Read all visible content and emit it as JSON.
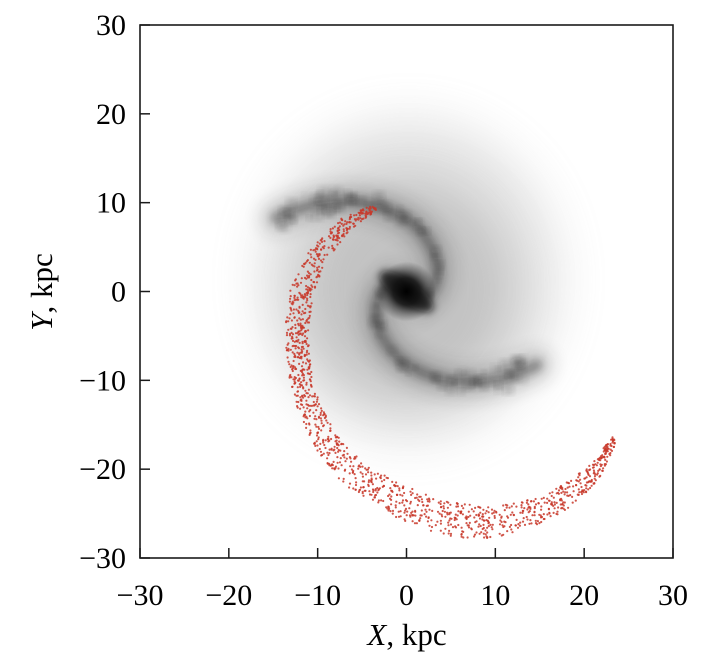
{
  "chart_data": {
    "type": "scatter",
    "xlabel_var": "X",
    "xlabel_unit": ", kpc",
    "ylabel_var": "Y",
    "ylabel_unit": ", kpc",
    "xlim": [
      -30,
      30
    ],
    "ylim": [
      -30,
      30
    ],
    "x_ticks": [
      -30,
      -20,
      -10,
      0,
      10,
      20,
      30
    ],
    "y_ticks": [
      -30,
      -20,
      -10,
      0,
      10,
      20,
      30
    ],
    "x_tick_labels": [
      "−30",
      "−20",
      "−10",
      "0",
      "10",
      "20",
      "30"
    ],
    "y_tick_labels": [
      "−30",
      "−20",
      "−10",
      "0",
      "10",
      "20",
      "30"
    ],
    "grid": false,
    "colors": {
      "stream": "#c8382a",
      "galaxy": "#222222"
    },
    "background_image": "grayscale two-armed spiral galaxy centered near (0, 0), radius about 20 kpc",
    "stream_track": {
      "x": [
        -3.5,
        -7,
        -10,
        -11.8,
        -12.4,
        -12,
        -11,
        -9,
        -6,
        -2,
        2,
        6,
        10,
        14,
        18,
        21,
        23.5
      ],
      "y": [
        9.5,
        7.5,
        4,
        0,
        -4.5,
        -9,
        -13,
        -17,
        -20.5,
        -23,
        -24.8,
        -25.8,
        -26,
        -25,
        -23,
        -20.5,
        -16.5
      ],
      "half_width": [
        0.4,
        0.8,
        1.1,
        1.3,
        1.3,
        1.3,
        1.3,
        1.4,
        1.6,
        1.8,
        1.9,
        1.9,
        1.8,
        1.6,
        1.3,
        0.9,
        0.3
      ]
    }
  }
}
